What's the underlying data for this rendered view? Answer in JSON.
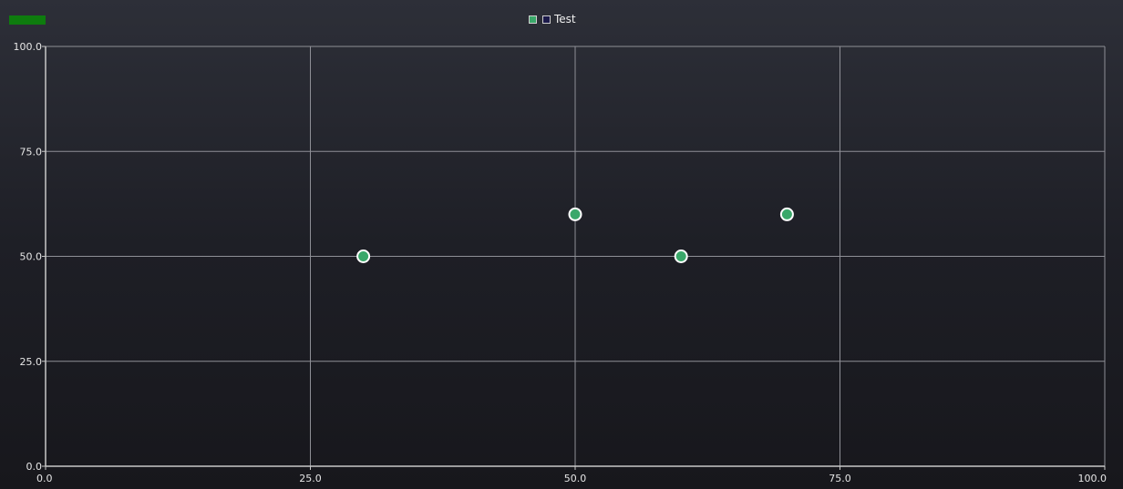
{
  "status": {
    "color": "#0e7c0e"
  },
  "legend": {
    "entries": [
      {
        "label": "",
        "color": "#3aa86a"
      },
      {
        "label": "Test",
        "color": "#1c1a4a"
      }
    ]
  },
  "chart_data": {
    "type": "scatter",
    "title": "",
    "xlabel": "",
    "ylabel": "",
    "xlim": [
      0,
      100
    ],
    "ylim": [
      0,
      100
    ],
    "grid": true,
    "legend_position": "top-center",
    "x_ticks": [
      0,
      25,
      50,
      75,
      100
    ],
    "y_ticks": [
      0,
      25,
      50,
      75,
      100
    ],
    "x_tick_labels": [
      "0.0",
      "25.0",
      "50.0",
      "75.0",
      "100.0"
    ],
    "y_tick_labels": [
      "0.0",
      "25.0",
      "50.0",
      "75.0",
      "100.0"
    ],
    "marker_color": "#3aa86a",
    "marker_edge": "#ffffff",
    "series": [
      {
        "points": [
          {
            "x": 30,
            "y": 50
          },
          {
            "x": 50,
            "y": 60
          },
          {
            "x": 60,
            "y": 50
          },
          {
            "x": 70,
            "y": 60
          }
        ]
      }
    ]
  }
}
